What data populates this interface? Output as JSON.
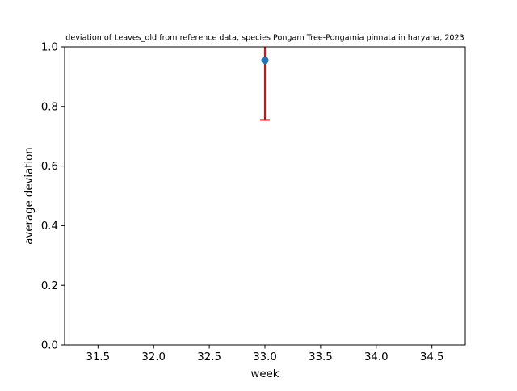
{
  "chart_data": {
    "type": "scatter",
    "title": "deviation of Leaves_old from reference data, species Pongam Tree-Pongamia pinnata in haryana, 2023",
    "xlabel": "week",
    "ylabel": "average deviation",
    "xlim": [
      31.2,
      34.8
    ],
    "ylim": [
      0.0,
      1.0
    ],
    "xticks": [
      31.5,
      32.0,
      32.5,
      33.0,
      33.5,
      34.0,
      34.5
    ],
    "xtick_labels": [
      "31.5",
      "32.0",
      "32.5",
      "33.0",
      "33.5",
      "34.0",
      "34.5"
    ],
    "yticks": [
      0.0,
      0.2,
      0.4,
      0.6,
      0.8,
      1.0
    ],
    "ytick_labels": [
      "0.0",
      "0.2",
      "0.4",
      "0.6",
      "0.8",
      "1.0"
    ],
    "grid": false,
    "legend": "none",
    "series": [
      {
        "x": [
          33.0
        ],
        "y": [
          0.955
        ],
        "yerr_lower": [
          0.755
        ],
        "yerr_upper": [
          1.155
        ],
        "marker_color": "#1f77b4",
        "errorbar_color": "#ff0000"
      }
    ]
  }
}
